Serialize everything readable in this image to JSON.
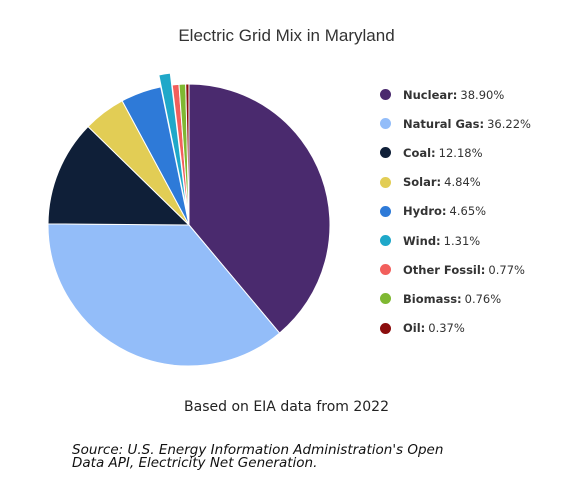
{
  "chart_data": {
    "type": "pie",
    "title": "Electric Grid Mix in Maryland",
    "legend_position": "right",
    "slices": [
      {
        "name": "Nuclear",
        "value": 38.9,
        "label": "38.90%",
        "color": "#4a2a6e"
      },
      {
        "name": "Natural Gas",
        "value": 36.22,
        "label": "36.22%",
        "color": "#93bdf9"
      },
      {
        "name": "Coal",
        "value": 12.18,
        "label": "12.18%",
        "color": "#0f1f38"
      },
      {
        "name": "Solar",
        "value": 4.84,
        "label": "4.84%",
        "color": "#e2cd55"
      },
      {
        "name": "Hydro",
        "value": 4.65,
        "label": "4.65%",
        "color": "#2e7ad8"
      },
      {
        "name": "Wind",
        "value": 1.31,
        "label": "1.31%",
        "color": "#1fa8c9"
      },
      {
        "name": "Other Fossil",
        "value": 0.77,
        "label": "0.77%",
        "color": "#f25f5c"
      },
      {
        "name": "Biomass",
        "value": 0.76,
        "label": "0.76%",
        "color": "#7fb832"
      },
      {
        "name": "Oil",
        "value": 0.37,
        "label": "0.37%",
        "color": "#8b0d0d"
      }
    ],
    "exploded_slice": "Wind"
  },
  "caption": "Based on EIA data from 2022",
  "source": {
    "line1": "Source: U.S. Energy Information Administration's Open",
    "line2": "Data API, Electricity Net Generation."
  }
}
